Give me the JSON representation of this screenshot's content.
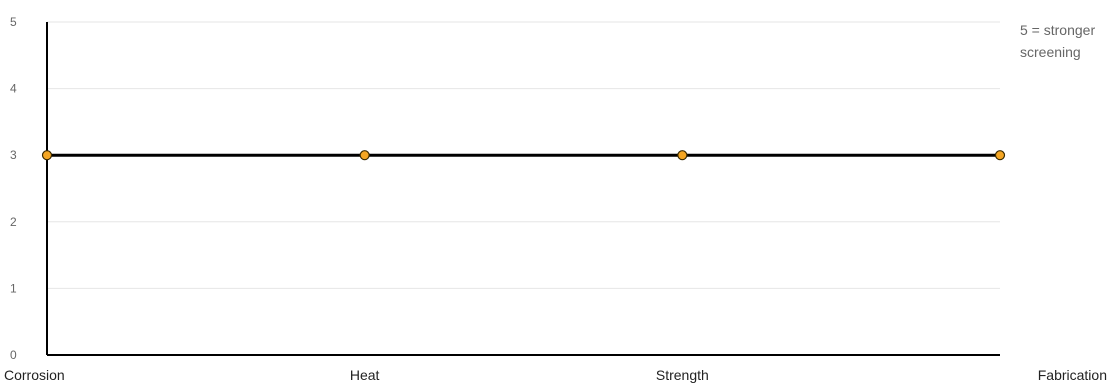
{
  "chart_data": {
    "type": "line",
    "categories": [
      "Corrosion",
      "Heat",
      "Strength",
      "Fabrication"
    ],
    "series": [
      {
        "values": [
          3,
          3,
          3,
          3
        ]
      }
    ],
    "ylim": [
      0,
      5
    ],
    "yticks": [
      "0",
      "1",
      "2",
      "3",
      "4",
      "5"
    ],
    "grid": true,
    "legend": "none",
    "note": [
      "5 = stronger",
      "screening"
    ],
    "colors": {
      "line": "#000000",
      "marker_fill": "#f5a623",
      "marker_stroke": "#3a2a00",
      "grid": "#e6e6e6",
      "axis": "#000000"
    }
  }
}
